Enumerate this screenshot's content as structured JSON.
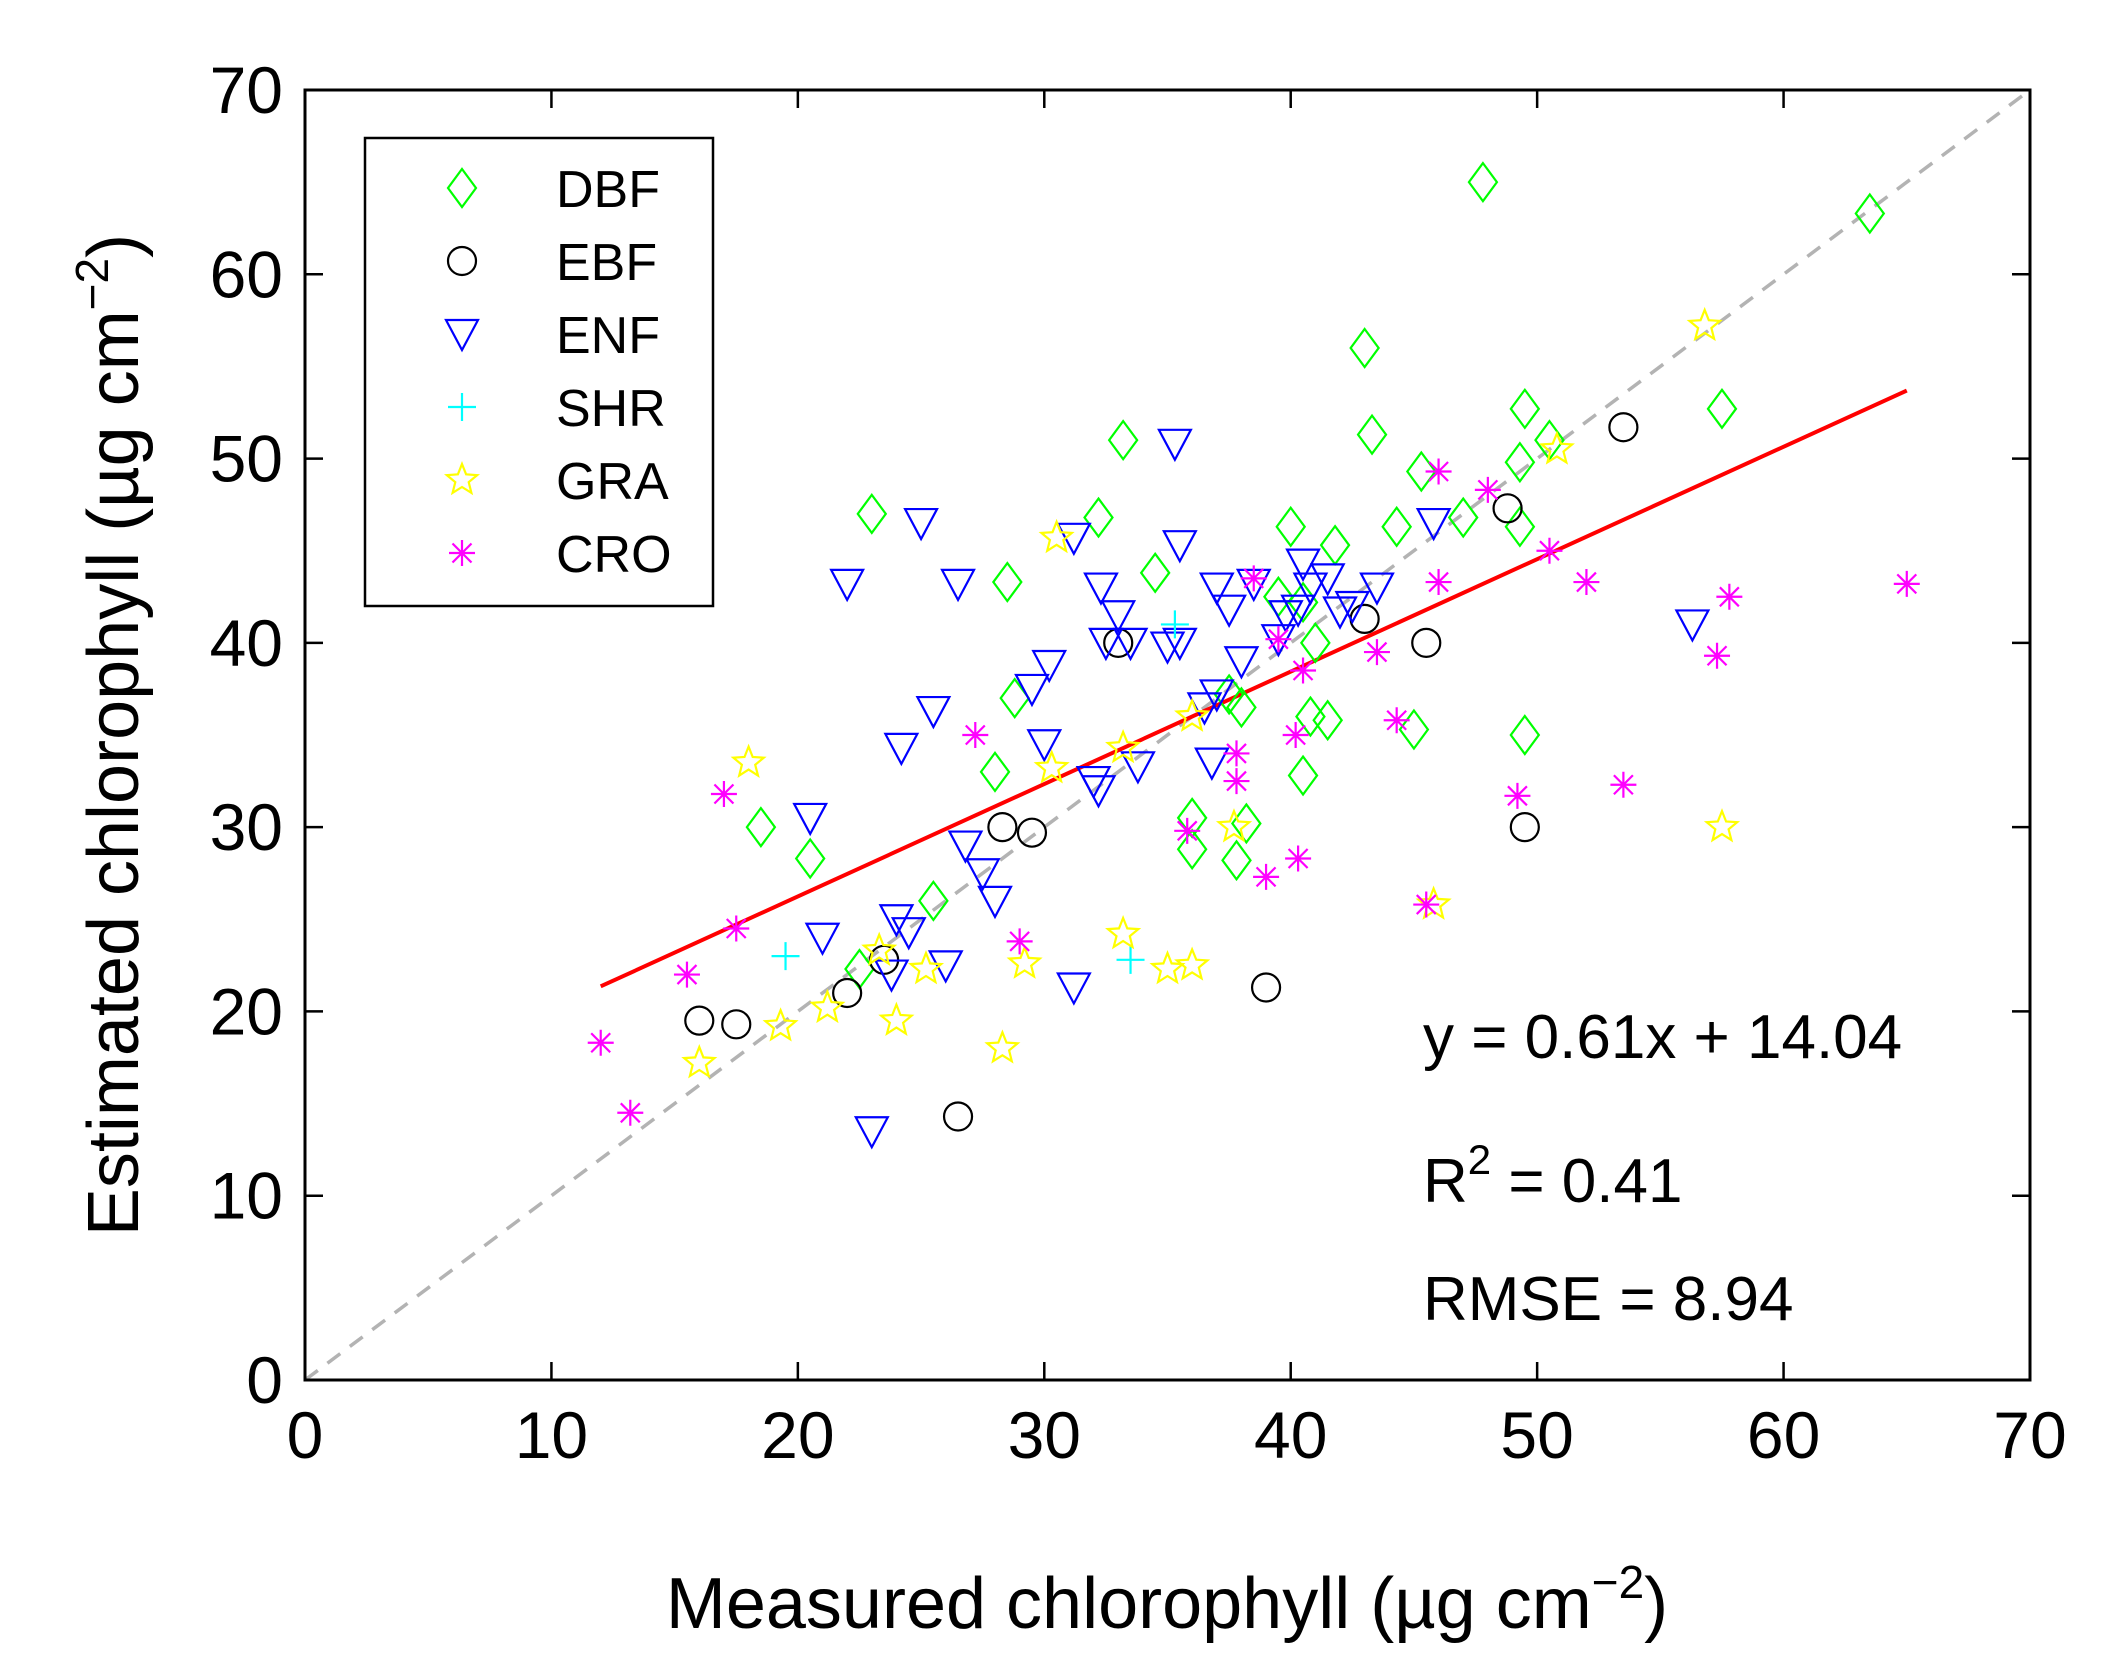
{
  "chart_data": {
    "type": "scatter",
    "xlabel": "Measured chlorophyll (µg cm",
    "xlabel_sup": "−2",
    "xlabel_close": ")",
    "ylabel": "Estimated chlorophyll (µg cm",
    "ylabel_sup": "−2",
    "ylabel_close": ")",
    "xlim": [
      0,
      70
    ],
    "ylim": [
      0,
      70
    ],
    "xticks": [
      "0",
      "10",
      "20",
      "30",
      "40",
      "50",
      "60",
      "70"
    ],
    "yticks": [
      "0",
      "10",
      "20",
      "30",
      "40",
      "50",
      "60",
      "70"
    ],
    "grid": false,
    "legend_position": "top-left",
    "one_to_one_line": {
      "from": [
        0,
        0
      ],
      "to": [
        70,
        70
      ],
      "color": "#b3b3b3",
      "style": "dashed"
    },
    "fit_line": {
      "slope": 0.61,
      "intercept": 14.04,
      "x_range": [
        12,
        65
      ],
      "color": "#ff0000"
    },
    "annotations": {
      "equation": "y = 0.61x + 14.04",
      "r2_label": "R",
      "r2_sup": "2",
      "r2_value": " = 0.41",
      "rmse": "RMSE = 8.94"
    },
    "series": [
      {
        "name": "DBF",
        "marker": "diamond",
        "color": "#00ff00",
        "points": [
          [
            23.0,
            47.0
          ],
          [
            28.5,
            43.3
          ],
          [
            28.8,
            37.0
          ],
          [
            28.0,
            33.0
          ],
          [
            18.5,
            30.0
          ],
          [
            20.5,
            28.3
          ],
          [
            25.5,
            26.0
          ],
          [
            22.5,
            22.3
          ],
          [
            32.2,
            46.8
          ],
          [
            33.2,
            51.0
          ],
          [
            34.5,
            43.8
          ],
          [
            36.0,
            30.5
          ],
          [
            36.0,
            28.8
          ],
          [
            37.5,
            37.2
          ],
          [
            38.0,
            36.5
          ],
          [
            38.2,
            30.2
          ],
          [
            37.8,
            28.2
          ],
          [
            39.5,
            42.5
          ],
          [
            40.0,
            46.3
          ],
          [
            40.5,
            42.2
          ],
          [
            41.0,
            40.0
          ],
          [
            40.8,
            36.0
          ],
          [
            41.5,
            35.8
          ],
          [
            40.5,
            32.8
          ],
          [
            41.8,
            45.3
          ],
          [
            43.0,
            56.0
          ],
          [
            43.3,
            51.3
          ],
          [
            44.3,
            46.3
          ],
          [
            45.0,
            35.3
          ],
          [
            45.3,
            49.3
          ],
          [
            47.0,
            46.8
          ],
          [
            47.8,
            65.0
          ],
          [
            49.3,
            49.8
          ],
          [
            49.3,
            46.3
          ],
          [
            49.5,
            52.7
          ],
          [
            49.5,
            35.0
          ],
          [
            50.5,
            51.0
          ],
          [
            57.5,
            52.7
          ],
          [
            63.5,
            63.3
          ]
        ]
      },
      {
        "name": "EBF",
        "marker": "circle",
        "color": "#000000",
        "points": [
          [
            16.0,
            19.5
          ],
          [
            17.5,
            19.3
          ],
          [
            22.0,
            21.0
          ],
          [
            23.5,
            22.8
          ],
          [
            26.5,
            14.3
          ],
          [
            28.3,
            30.0
          ],
          [
            29.5,
            29.7
          ],
          [
            33.0,
            40.0
          ],
          [
            39.0,
            21.3
          ],
          [
            43.0,
            41.3
          ],
          [
            45.5,
            40.0
          ],
          [
            48.8,
            47.3
          ],
          [
            49.5,
            30.0
          ],
          [
            53.5,
            51.7
          ]
        ]
      },
      {
        "name": "ENF",
        "marker": "triangle-down",
        "color": "#0000ff",
        "points": [
          [
            20.5,
            30.5
          ],
          [
            21.0,
            24.0
          ],
          [
            22.0,
            43.2
          ],
          [
            23.0,
            13.5
          ],
          [
            23.8,
            22.0
          ],
          [
            24.0,
            25.0
          ],
          [
            24.2,
            34.3
          ],
          [
            24.5,
            24.3
          ],
          [
            25.0,
            46.5
          ],
          [
            25.5,
            36.3
          ],
          [
            26.0,
            22.5
          ],
          [
            26.5,
            43.2
          ],
          [
            26.8,
            29.0
          ],
          [
            27.5,
            27.5
          ],
          [
            28.0,
            26.0
          ],
          [
            29.5,
            37.5
          ],
          [
            30.0,
            34.5
          ],
          [
            30.2,
            38.8
          ],
          [
            31.2,
            45.7
          ],
          [
            31.2,
            21.3
          ],
          [
            32.0,
            32.5
          ],
          [
            32.2,
            32.0
          ],
          [
            32.3,
            43.0
          ],
          [
            32.5,
            40.0
          ],
          [
            33.0,
            41.5
          ],
          [
            33.5,
            40.0
          ],
          [
            33.8,
            33.3
          ],
          [
            35.0,
            39.8
          ],
          [
            35.3,
            50.8
          ],
          [
            35.5,
            45.3
          ],
          [
            35.5,
            40.0
          ],
          [
            36.5,
            36.5
          ],
          [
            36.8,
            33.5
          ],
          [
            37.0,
            37.2
          ],
          [
            37.0,
            43.0
          ],
          [
            37.5,
            41.8
          ],
          [
            38.0,
            39.0
          ],
          [
            38.5,
            43.2
          ],
          [
            39.5,
            40.2
          ],
          [
            39.8,
            41.5
          ],
          [
            40.3,
            41.8
          ],
          [
            40.5,
            44.3
          ],
          [
            40.8,
            43.0
          ],
          [
            41.5,
            43.5
          ],
          [
            42.0,
            41.7
          ],
          [
            42.5,
            42.0
          ],
          [
            43.5,
            43.0
          ],
          [
            45.8,
            46.5
          ],
          [
            56.3,
            41.0
          ]
        ]
      },
      {
        "name": "SHR",
        "marker": "plus",
        "color": "#00ffff",
        "points": [
          [
            19.5,
            23.0
          ],
          [
            33.5,
            22.8
          ],
          [
            35.3,
            41.0
          ]
        ]
      },
      {
        "name": "GRA",
        "marker": "star",
        "color": "#ffff00",
        "points": [
          [
            16.0,
            17.2
          ],
          [
            18.0,
            33.5
          ],
          [
            19.3,
            19.2
          ],
          [
            21.2,
            20.2
          ],
          [
            23.3,
            23.3
          ],
          [
            24.0,
            19.5
          ],
          [
            25.2,
            22.3
          ],
          [
            28.3,
            18.0
          ],
          [
            29.2,
            22.6
          ],
          [
            30.3,
            33.2
          ],
          [
            30.5,
            45.7
          ],
          [
            33.2,
            34.3
          ],
          [
            33.2,
            24.2
          ],
          [
            35.0,
            22.3
          ],
          [
            36.0,
            22.5
          ],
          [
            36.0,
            36.0
          ],
          [
            37.7,
            30.0
          ],
          [
            45.8,
            25.8
          ],
          [
            50.8,
            50.5
          ],
          [
            56.8,
            57.2
          ],
          [
            57.5,
            30.0
          ]
        ]
      },
      {
        "name": "CRO",
        "marker": "asterisk",
        "color": "#ff00ff",
        "points": [
          [
            12.0,
            18.3
          ],
          [
            13.2,
            14.5
          ],
          [
            15.5,
            22.0
          ],
          [
            17.0,
            31.8
          ],
          [
            17.5,
            24.5
          ],
          [
            27.2,
            35.0
          ],
          [
            29.0,
            23.8
          ],
          [
            35.8,
            29.8
          ],
          [
            37.8,
            34.0
          ],
          [
            37.8,
            32.5
          ],
          [
            38.5,
            43.5
          ],
          [
            39.0,
            27.3
          ],
          [
            39.5,
            40.2
          ],
          [
            40.2,
            35.0
          ],
          [
            40.3,
            28.3
          ],
          [
            40.5,
            38.5
          ],
          [
            43.5,
            39.5
          ],
          [
            44.3,
            35.8
          ],
          [
            45.5,
            25.8
          ],
          [
            46.0,
            49.3
          ],
          [
            46.0,
            43.3
          ],
          [
            48.0,
            48.3
          ],
          [
            49.2,
            31.7
          ],
          [
            50.5,
            45.0
          ],
          [
            52.0,
            43.3
          ],
          [
            53.5,
            32.3
          ],
          [
            57.3,
            39.3
          ],
          [
            57.8,
            42.5
          ],
          [
            65.0,
            43.2
          ]
        ]
      }
    ]
  }
}
